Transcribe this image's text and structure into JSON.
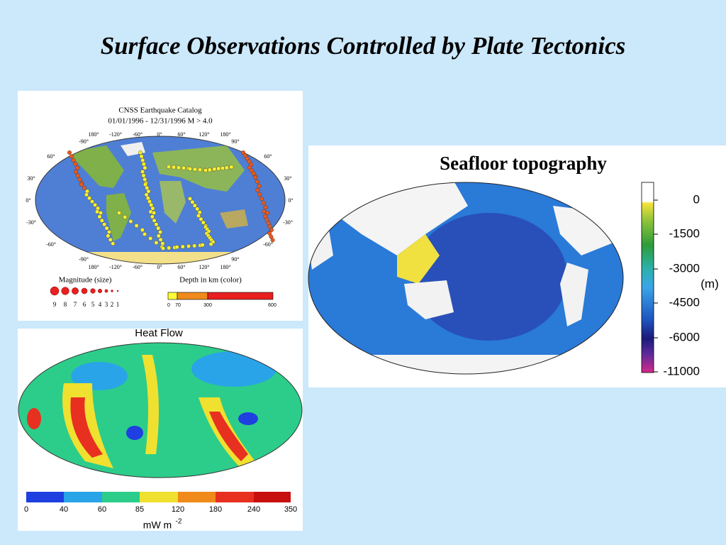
{
  "title": "Surface Observations Controlled by Plate Tectonics",
  "earthquake_map": {
    "title": "CNSS Earthquake Catalog",
    "subtitle": "01/01/1996 - 12/31/1996 M > 4.0",
    "longitude_labels": [
      "180°",
      "-120°",
      "-60°",
      "0°",
      "60°",
      "120°",
      "180°"
    ],
    "longitude_labels_edge": [
      "-90°",
      "90°"
    ],
    "latitude_labels": [
      "60°",
      "30°",
      "0°",
      "-30°",
      "-60°"
    ],
    "magnitude_label": "Magnitude (size)",
    "magnitude_values": [
      9,
      8,
      7,
      6,
      5,
      4,
      3,
      2,
      1
    ],
    "depth_label": "Depth in km (color)",
    "depth_ticks": [
      0,
      70,
      300,
      600
    ]
  },
  "heat_flow_map": {
    "title": "Heat Flow",
    "scale_ticks": [
      0,
      40,
      60,
      85,
      120,
      180,
      240,
      350
    ],
    "unit": "mW m",
    "unit_exponent": "-2"
  },
  "seafloor_map": {
    "title": "Seafloor topography",
    "scale_ticks": [
      0,
      -1500,
      -3000,
      -4500,
      -6000,
      -11000
    ],
    "unit": "(m)"
  }
}
